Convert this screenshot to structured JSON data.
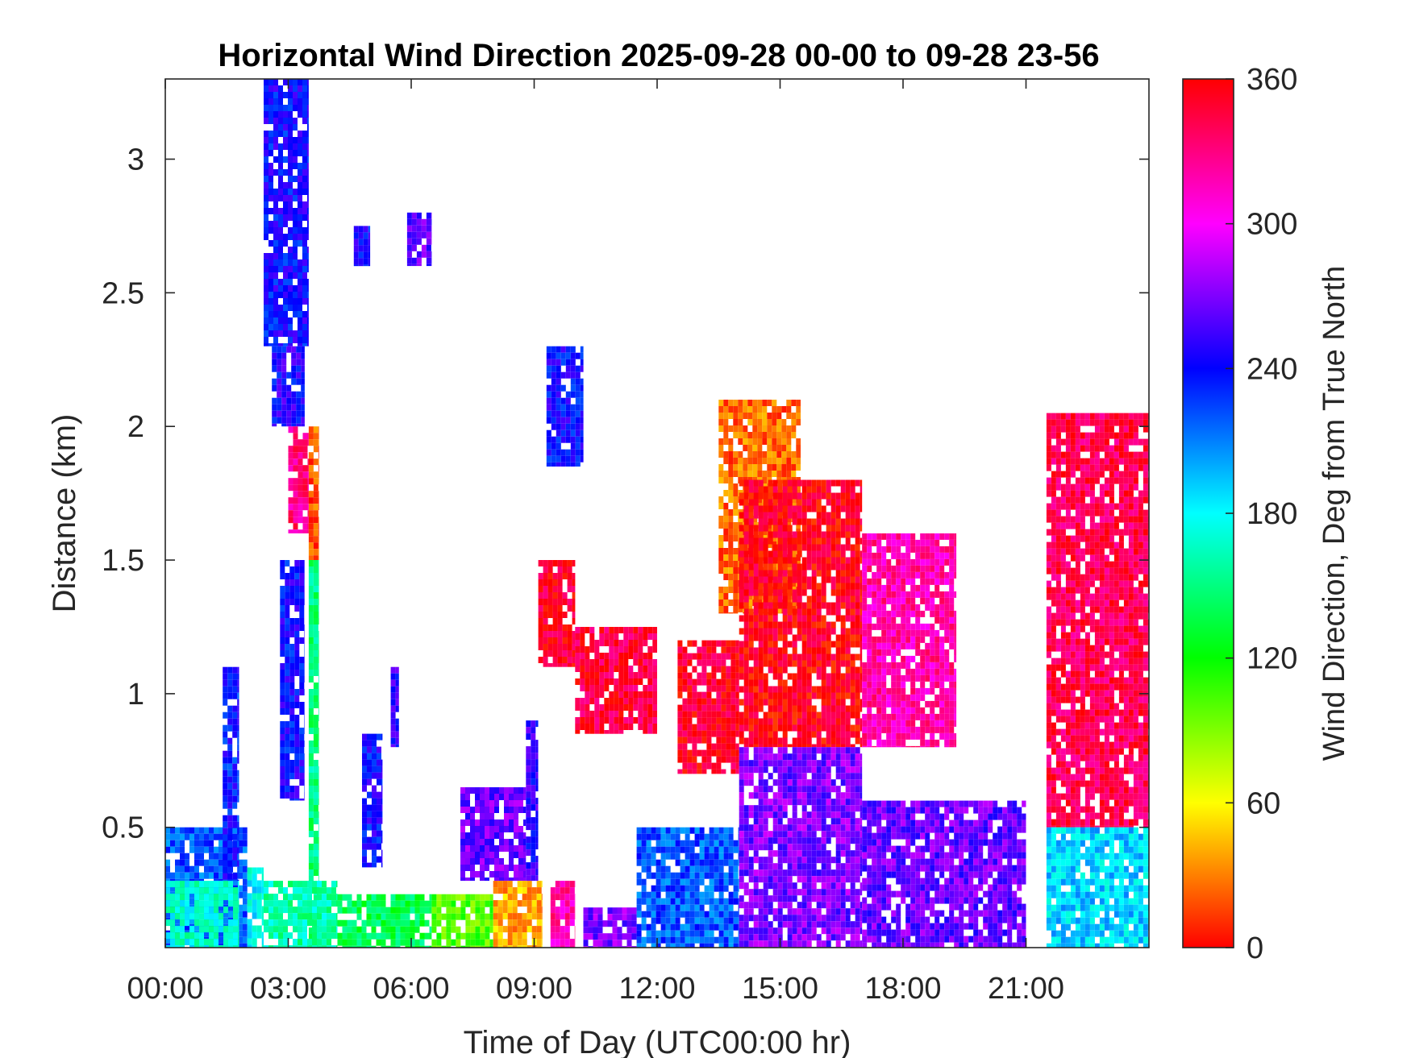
{
  "chart_data": {
    "type": "heatmap",
    "title": "Horizontal Wind Direction 2025-09-28 00-00 to 09-28 23-56",
    "xlabel": "Time of Day (UTC00:00 hr)",
    "ylabel": "Distance (km)",
    "colorbar_label": "Wind Direction, Deg from True North",
    "xlim": [
      0,
      24
    ],
    "ylim": [
      0.05,
      3.3
    ],
    "x_ticks": [
      0,
      3,
      6,
      9,
      12,
      15,
      18,
      21
    ],
    "x_tick_labels": [
      "00:00",
      "03:00",
      "06:00",
      "09:00",
      "12:00",
      "15:00",
      "18:00",
      "21:00"
    ],
    "y_ticks": [
      0.5,
      1,
      1.5,
      2,
      2.5,
      3
    ],
    "y_tick_labels": [
      "0.5",
      "1",
      "1.5",
      "2",
      "2.5",
      "3"
    ],
    "clim": [
      0,
      360
    ],
    "colorbar_ticks": [
      0,
      60,
      120,
      180,
      240,
      300,
      360
    ],
    "colorbar_tick_labels": [
      "0",
      "60",
      "120",
      "180",
      "240",
      "300",
      "360"
    ],
    "colormap": "hsv",
    "colormap_stops": [
      {
        "value": 0,
        "color": "#ff0000"
      },
      {
        "value": 60,
        "color": "#ffff00"
      },
      {
        "value": 120,
        "color": "#00ff00"
      },
      {
        "value": 180,
        "color": "#00ffff"
      },
      {
        "value": 240,
        "color": "#0000ff"
      },
      {
        "value": 300,
        "color": "#ff00ff"
      },
      {
        "value": 360,
        "color": "#ff0000"
      }
    ],
    "grid": false,
    "regions": [
      {
        "t": [
          0.0,
          2.0
        ],
        "h": [
          0.05,
          0.5
        ],
        "dir": 220
      },
      {
        "t": [
          0.0,
          1.8
        ],
        "h": [
          0.05,
          0.3
        ],
        "dir": 170
      },
      {
        "t": [
          1.4,
          1.8
        ],
        "h": [
          0.3,
          1.1
        ],
        "dir": 235
      },
      {
        "t": [
          2.0,
          2.4
        ],
        "h": [
          0.05,
          0.35
        ],
        "dir": 180
      },
      {
        "t": [
          2.4,
          3.5
        ],
        "h": [
          2.3,
          3.3
        ],
        "dir": 240
      },
      {
        "t": [
          2.6,
          3.4
        ],
        "h": [
          2.0,
          2.3
        ],
        "dir": 245
      },
      {
        "t": [
          3.0,
          3.5
        ],
        "h": [
          1.6,
          2.0
        ],
        "dir": 330
      },
      {
        "t": [
          3.5,
          3.75
        ],
        "h": [
          1.5,
          2.0
        ],
        "dir": 20
      },
      {
        "t": [
          3.5,
          3.75
        ],
        "h": [
          0.05,
          1.5
        ],
        "dir": 150
      },
      {
        "t": [
          2.8,
          3.4
        ],
        "h": [
          0.6,
          1.5
        ],
        "dir": 240
      },
      {
        "t": [
          2.4,
          4.2
        ],
        "h": [
          0.05,
          0.3
        ],
        "dir": 160
      },
      {
        "t": [
          4.2,
          6.5
        ],
        "h": [
          0.05,
          0.25
        ],
        "dir": 140
      },
      {
        "t": [
          6.5,
          8.0
        ],
        "h": [
          0.05,
          0.25
        ],
        "dir": 100
      },
      {
        "t": [
          4.6,
          5.0
        ],
        "h": [
          2.6,
          2.75
        ],
        "dir": 240
      },
      {
        "t": [
          5.9,
          6.5
        ],
        "h": [
          2.6,
          2.8
        ],
        "dir": 260
      },
      {
        "t": [
          4.8,
          5.3
        ],
        "h": [
          0.35,
          0.85
        ],
        "dir": 240
      },
      {
        "t": [
          5.5,
          5.7
        ],
        "h": [
          0.8,
          1.1
        ],
        "dir": 250
      },
      {
        "t": [
          7.2,
          8.8
        ],
        "h": [
          0.3,
          0.65
        ],
        "dir": 265
      },
      {
        "t": [
          8.0,
          9.2
        ],
        "h": [
          0.05,
          0.3
        ],
        "dir": 40
      },
      {
        "t": [
          8.8,
          9.1
        ],
        "h": [
          0.3,
          0.9
        ],
        "dir": 250
      },
      {
        "t": [
          9.1,
          10.0
        ],
        "h": [
          1.1,
          1.5
        ],
        "dir": 350
      },
      {
        "t": [
          9.4,
          10.0
        ],
        "h": [
          0.05,
          0.3
        ],
        "dir": 320
      },
      {
        "t": [
          9.3,
          10.2
        ],
        "h": [
          1.85,
          2.3
        ],
        "dir": 240
      },
      {
        "t": [
          10.0,
          12.0
        ],
        "h": [
          0.85,
          1.25
        ],
        "dir": 345
      },
      {
        "t": [
          10.2,
          11.5
        ],
        "h": [
          0.05,
          0.2
        ],
        "dir": 270
      },
      {
        "t": [
          11.5,
          14.0
        ],
        "h": [
          0.05,
          0.5
        ],
        "dir": 220
      },
      {
        "t": [
          12.5,
          14.0
        ],
        "h": [
          0.7,
          1.2
        ],
        "dir": 350
      },
      {
        "t": [
          13.5,
          15.5
        ],
        "h": [
          1.3,
          2.1
        ],
        "dir": 25
      },
      {
        "t": [
          14.0,
          17.0
        ],
        "h": [
          0.8,
          1.8
        ],
        "dir": 355
      },
      {
        "t": [
          14.0,
          17.0
        ],
        "h": [
          0.05,
          0.8
        ],
        "dir": 270
      },
      {
        "t": [
          17.0,
          19.3
        ],
        "h": [
          0.8,
          1.6
        ],
        "dir": 320
      },
      {
        "t": [
          17.0,
          21.0
        ],
        "h": [
          0.05,
          0.6
        ],
        "dir": 265
      },
      {
        "t": [
          21.5,
          24.0
        ],
        "h": [
          0.5,
          2.05
        ],
        "dir": 340
      },
      {
        "t": [
          21.5,
          24.0
        ],
        "h": [
          0.05,
          0.5
        ],
        "dir": 190
      }
    ]
  }
}
